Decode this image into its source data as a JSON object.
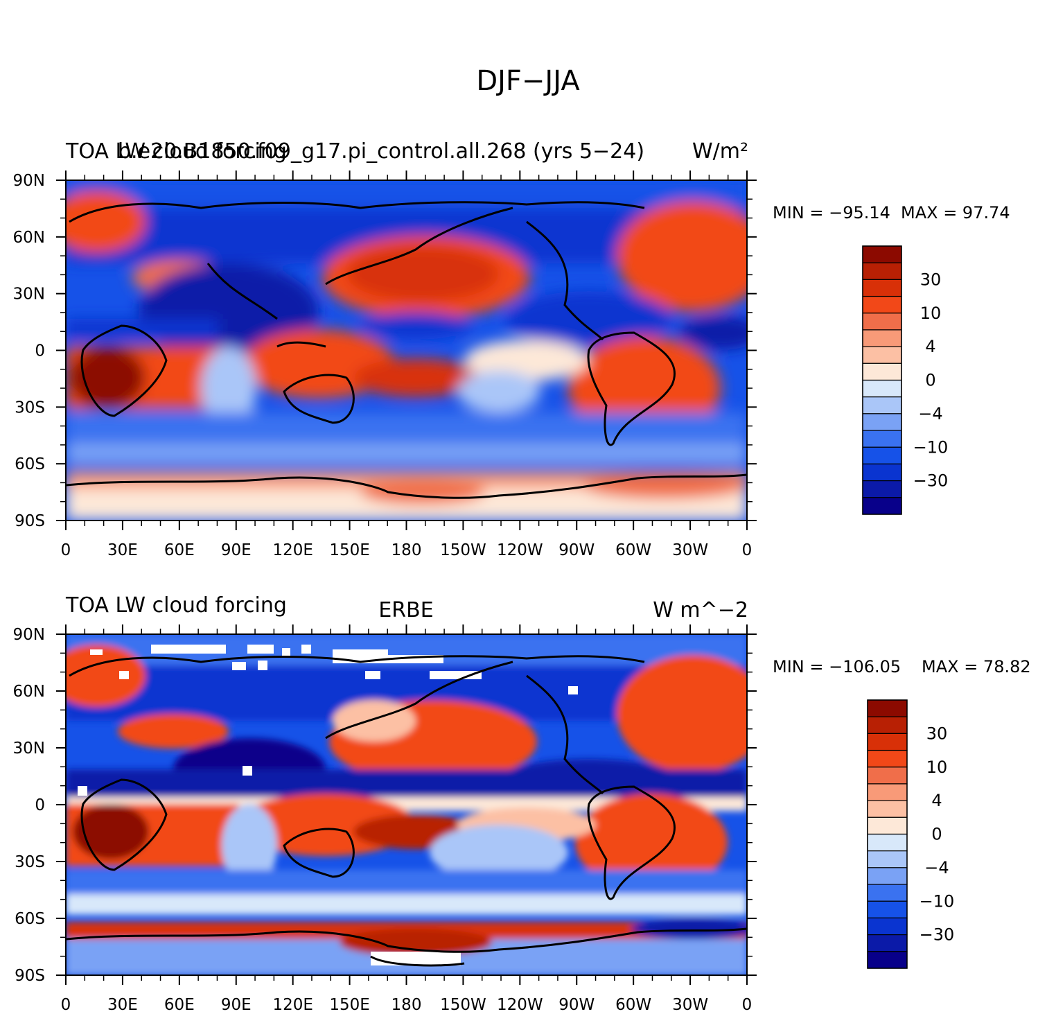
{
  "figure_title": "DJF−JJA",
  "chart_data": [
    {
      "type": "heatmap",
      "title_left_overlapped": [
        "TOA LW cloud forcing",
        "b.e20.B1850.f09_g17.pi_control.all.268 (yrs 5−24)"
      ],
      "title_left": "TOA LW cloud forcing",
      "title_center": "b.e20.B1850.f09_g17.pi_control.all.268 (yrs 5−24)",
      "units": "W/m²",
      "min_label": "MIN = −95.14",
      "max_label": "MAX =  97.74",
      "min": -95.14,
      "max": 97.74,
      "x_ticks": [
        "0",
        "30E",
        "60E",
        "90E",
        "120E",
        "150E",
        "180",
        "150W",
        "120W",
        "90W",
        "60W",
        "30W",
        "0"
      ],
      "y_ticks": [
        "90N",
        "60N",
        "30N",
        "0",
        "30S",
        "60S",
        "90S"
      ],
      "xlim": [
        0,
        360
      ],
      "ylim": [
        -90,
        90
      ],
      "colorbar_labels": [
        "30",
        "10",
        "4",
        "0",
        "−4",
        "−10",
        "−30"
      ]
    },
    {
      "type": "heatmap",
      "title_left": "TOA LW cloud forcing",
      "title_center": "ERBE",
      "units": "W m^−2",
      "min_label": "MIN = −106.05",
      "max_label": "MAX =  78.82",
      "min": -106.05,
      "max": 78.82,
      "x_ticks": [
        "0",
        "30E",
        "60E",
        "90E",
        "120E",
        "150E",
        "180",
        "150W",
        "120W",
        "90W",
        "60W",
        "30W",
        "0"
      ],
      "y_ticks": [
        "90N",
        "60N",
        "30N",
        "0",
        "30S",
        "60S",
        "90S"
      ],
      "xlim": [
        0,
        360
      ],
      "ylim": [
        -90,
        90
      ],
      "colorbar_labels": [
        "30",
        "10",
        "4",
        "0",
        "−4",
        "−10",
        "−30"
      ]
    }
  ],
  "colors": {
    "levels": [
      "#08008a",
      "#0b1aa8",
      "#0a34d0",
      "#1652e8",
      "#3a72f0",
      "#7aa2f5",
      "#aac6f8",
      "#d8e8fa",
      "#fde8d8",
      "#fcc0a4",
      "#f89a78",
      "#f06e4a",
      "#f24818",
      "#d83008",
      "#b82004",
      "#8c0a00"
    ]
  }
}
